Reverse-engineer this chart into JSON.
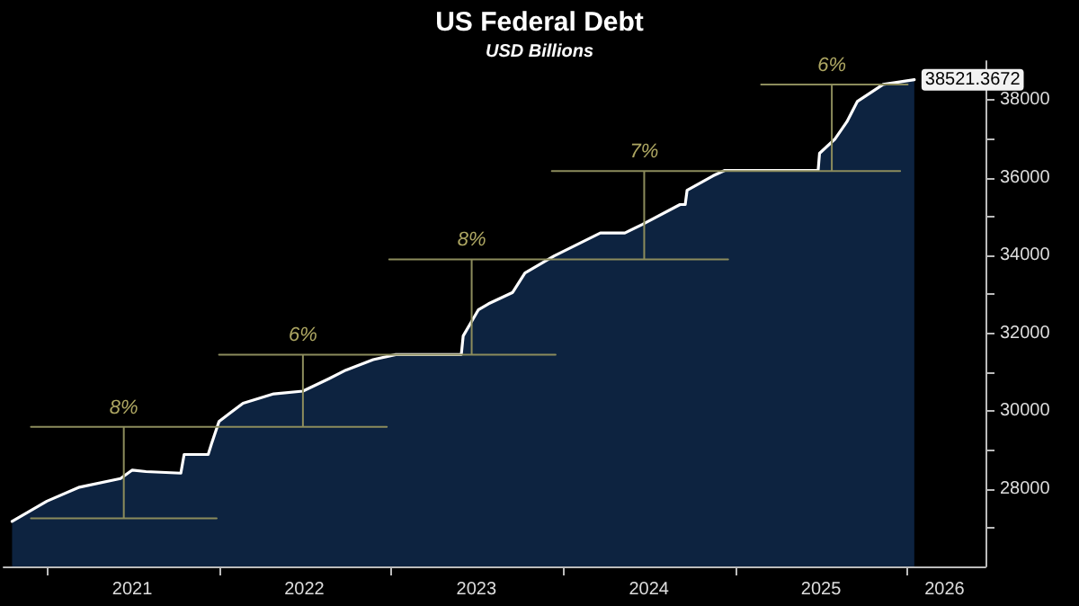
{
  "chart_data": {
    "type": "area",
    "title": "US Federal Debt",
    "subtitle": "USD Billions",
    "x": [
      "2020-10-19",
      "2021-01-01",
      "2021-03-11",
      "2021-06-06",
      "2021-07-01",
      "2021-07-30",
      "2021-10-12",
      "2021-10-19",
      "2021-12-09",
      "2021-12-16",
      "2022-01-01",
      "2022-02-21",
      "2022-04-27",
      "2022-06-28",
      "2022-08-22",
      "2022-09-27",
      "2022-11-24",
      "2023-01-11",
      "2023-05-30",
      "2023-06-03",
      "2023-07-05",
      "2023-07-27",
      "2023-09-16",
      "2023-10-12",
      "2023-12-13",
      "2024-03-20",
      "2024-05-11",
      "2024-06-17",
      "2024-09-05",
      "2024-09-16",
      "2024-09-20",
      "2024-11-14",
      "2024-12-09",
      "2025-06-25",
      "2025-06-28",
      "2025-07-31",
      "2025-08-25",
      "2025-09-16",
      "2025-11-10",
      "2026-01-15"
    ],
    "series": [
      {
        "color": "#0d2340",
        "values": [
          27160,
          27680,
          28040,
          28260,
          28480,
          28440,
          28400,
          28880,
          28880,
          29150,
          29730,
          30200,
          30440,
          30510,
          30830,
          31050,
          31320,
          31450,
          31450,
          31930,
          32600,
          32760,
          33050,
          33550,
          33990,
          34580,
          34580,
          34800,
          35310,
          35310,
          35680,
          36050,
          36190,
          36190,
          36630,
          37000,
          37440,
          37960,
          38400,
          38521.3672
        ],
        "value_labels": [
          null,
          null,
          null,
          null,
          null,
          null,
          null,
          null,
          null,
          null,
          null,
          null,
          null,
          null,
          null,
          null,
          null,
          null,
          null,
          null,
          null,
          null,
          null,
          null,
          null,
          null,
          null,
          null,
          null,
          null,
          null,
          null,
          null,
          null,
          null,
          null,
          null,
          null,
          null,
          "38521.3672"
        ]
      },
      {
        "type": "line",
        "color": "#8c8c5c",
        "x": [
          "2020-11-28",
          "2021-12-27",
          null,
          "2020-11-28",
          "2022-12-23",
          null,
          "2022-01-01",
          "2023-12-16",
          null,
          "2022-12-28",
          "2024-12-16",
          null,
          "2023-12-08",
          "2025-12-16",
          null,
          "2025-02-24",
          "2026-01-01",
          null,
          "2021-06-13",
          "2021-06-13",
          null,
          "2022-06-28",
          "2022-06-28",
          null,
          "2023-06-21",
          "2023-06-21",
          null,
          "2024-06-21",
          "2024-06-21",
          null,
          "2025-07-24",
          "2025-07-24"
        ],
        "values": [
          27240,
          27240,
          null,
          29590,
          29590,
          null,
          31450,
          31450,
          null,
          33900,
          33900,
          null,
          36170,
          36170,
          null,
          38400,
          38400,
          null,
          27240,
          29590,
          null,
          29590,
          31450,
          null,
          31450,
          33900,
          null,
          33900,
          36170,
          null,
          36170,
          38400
        ]
      }
    ],
    "annotations": [
      {
        "text": "8%",
        "x": "2021-06-13",
        "y": 29590
      },
      {
        "text": "6%",
        "x": "2022-06-28",
        "y": 31450
      },
      {
        "text": "8%",
        "x": "2023-06-21",
        "y": 33900
      },
      {
        "text": "7%",
        "x": "2024-06-21",
        "y": 36170
      },
      {
        "text": "6%",
        "x": "2025-07-24",
        "y": 38400
      }
    ],
    "xlim": [
      "2020-10-01",
      "2026-06-15"
    ],
    "xticks": [
      {
        "value": "2021-01-01",
        "label": null
      },
      {
        "value": "2021-07-01",
        "label": "2021"
      },
      {
        "value": "2022-01-01",
        "label": null
      },
      {
        "value": "2022-07-01",
        "label": "2022"
      },
      {
        "value": "2023-01-01",
        "label": null
      },
      {
        "value": "2023-07-01",
        "label": "2023"
      },
      {
        "value": "2024-01-01",
        "label": null
      },
      {
        "value": "2024-07-01",
        "label": "2024"
      },
      {
        "value": "2025-01-01",
        "label": null
      },
      {
        "value": "2025-07-01",
        "label": "2025"
      },
      {
        "value": "2026-01-01",
        "label": null
      },
      {
        "value": "2026-03-20",
        "label": "2026"
      }
    ],
    "ylim": [
      26000,
      39000
    ],
    "yticks": [
      {
        "value": 27000,
        "label": null
      },
      28000,
      {
        "value": 29000,
        "label": null
      },
      30000,
      {
        "value": 31000,
        "label": null
      },
      32000,
      {
        "value": 33000,
        "label": null
      },
      34000,
      {
        "value": 35000,
        "label": null
      },
      36000,
      {
        "value": 37000,
        "label": null
      },
      38000
    ],
    "grid": false,
    "marker": "none",
    "line_style": "solid"
  }
}
